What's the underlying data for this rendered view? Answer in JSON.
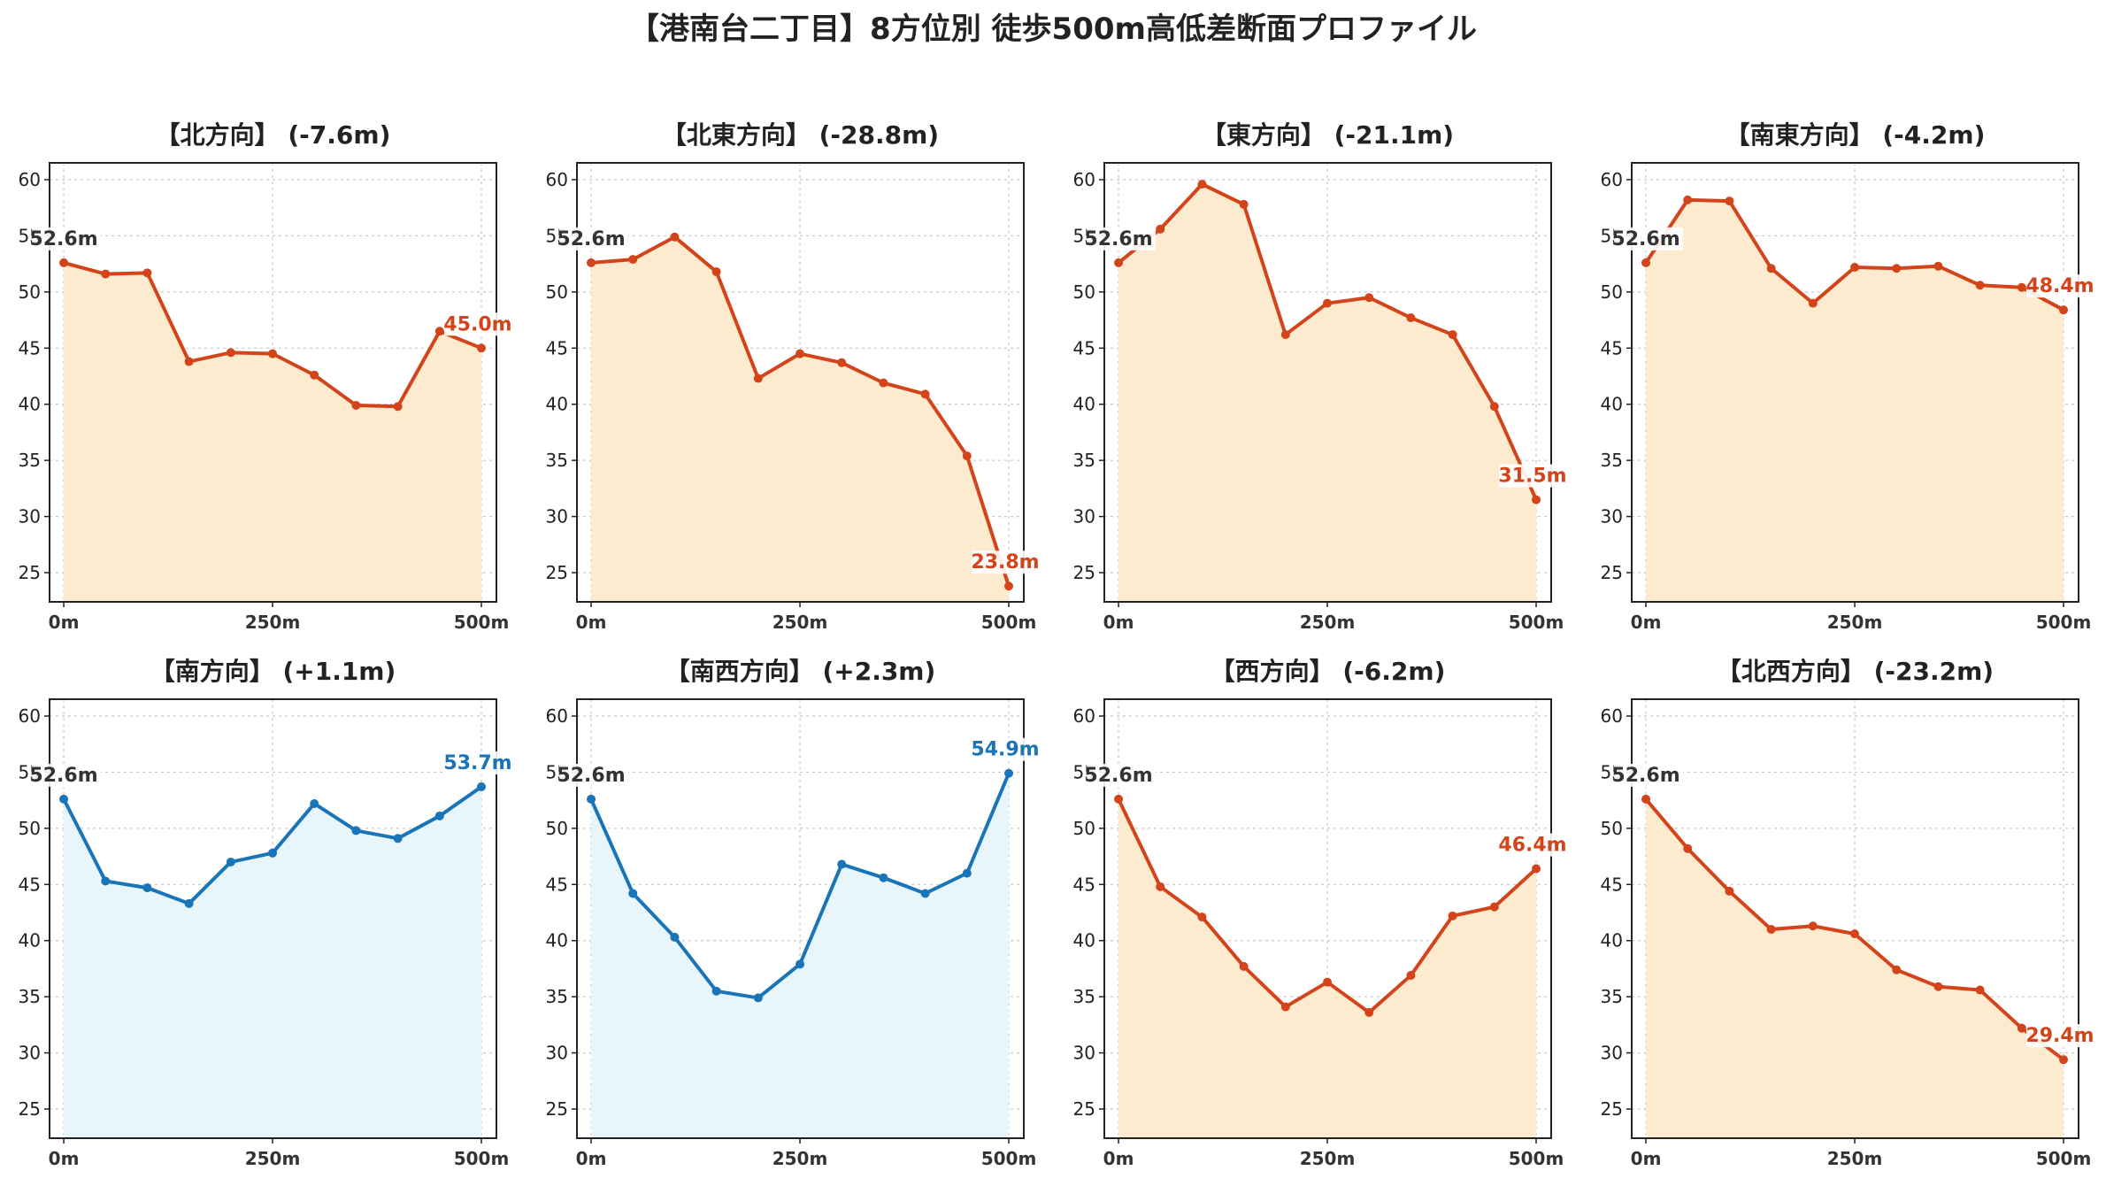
{
  "title": "【港南台二丁目】8方位別 徒歩500m高低差断面プロファイル",
  "colors": {
    "down_line": "#D4441B",
    "down_fill": "#FDEBD0",
    "up_line": "#1A74B8",
    "up_fill": "#E8F6FB",
    "start_label": "#333333"
  },
  "chart_data": [
    {
      "type": "area",
      "title": "【北方向】 (-7.6m)",
      "trend": "down",
      "x": [
        0,
        50,
        100,
        150,
        200,
        250,
        300,
        350,
        400,
        450,
        500
      ],
      "y": [
        52.6,
        51.6,
        51.7,
        43.8,
        44.6,
        44.5,
        42.6,
        39.9,
        39.8,
        46.5,
        45.0
      ],
      "start_label": "52.6m",
      "end_label": "45.0m"
    },
    {
      "type": "area",
      "title": "【北東方向】 (-28.8m)",
      "trend": "down",
      "x": [
        0,
        50,
        100,
        150,
        200,
        250,
        300,
        350,
        400,
        450,
        500
      ],
      "y": [
        52.6,
        52.9,
        54.9,
        51.8,
        42.3,
        44.5,
        43.7,
        41.9,
        40.9,
        35.4,
        23.8
      ],
      "start_label": "52.6m",
      "end_label": "23.8m"
    },
    {
      "type": "area",
      "title": "【東方向】 (-21.1m)",
      "trend": "down",
      "x": [
        0,
        50,
        100,
        150,
        200,
        250,
        300,
        350,
        400,
        450,
        500
      ],
      "y": [
        52.6,
        55.6,
        59.6,
        57.8,
        46.2,
        49.0,
        49.5,
        47.7,
        46.2,
        39.8,
        31.5
      ],
      "start_label": "52.6m",
      "end_label": "31.5m"
    },
    {
      "type": "area",
      "title": "【南東方向】 (-4.2m)",
      "trend": "down",
      "x": [
        0,
        50,
        100,
        150,
        200,
        250,
        300,
        350,
        400,
        450,
        500
      ],
      "y": [
        52.6,
        58.2,
        58.1,
        52.1,
        49.0,
        52.2,
        52.1,
        52.3,
        50.6,
        50.4,
        48.4
      ],
      "start_label": "52.6m",
      "end_label": "48.4m"
    },
    {
      "type": "area",
      "title": "【南方向】 (+1.1m)",
      "trend": "up",
      "x": [
        0,
        50,
        100,
        150,
        200,
        250,
        300,
        350,
        400,
        450,
        500
      ],
      "y": [
        52.6,
        45.3,
        44.7,
        43.3,
        47.0,
        47.8,
        52.2,
        49.8,
        49.1,
        51.1,
        53.7
      ],
      "start_label": "52.6m",
      "end_label": "53.7m"
    },
    {
      "type": "area",
      "title": "【南西方向】 (+2.3m)",
      "trend": "up",
      "x": [
        0,
        50,
        100,
        150,
        200,
        250,
        300,
        350,
        400,
        450,
        500
      ],
      "y": [
        52.6,
        44.2,
        40.3,
        35.5,
        34.9,
        37.9,
        46.8,
        45.6,
        44.2,
        46.0,
        54.9
      ],
      "start_label": "52.6m",
      "end_label": "54.9m"
    },
    {
      "type": "area",
      "title": "【西方向】 (-6.2m)",
      "trend": "down",
      "x": [
        0,
        50,
        100,
        150,
        200,
        250,
        300,
        350,
        400,
        450,
        500
      ],
      "y": [
        52.6,
        44.8,
        42.1,
        37.7,
        34.1,
        36.3,
        33.6,
        36.9,
        42.2,
        43.0,
        46.4
      ],
      "start_label": "52.6m",
      "end_label": "46.4m"
    },
    {
      "type": "area",
      "title": "【北西方向】 (-23.2m)",
      "trend": "down",
      "x": [
        0,
        50,
        100,
        150,
        200,
        250,
        300,
        350,
        400,
        450,
        500
      ],
      "y": [
        52.6,
        48.2,
        44.4,
        41.0,
        41.3,
        40.6,
        37.4,
        35.9,
        35.6,
        32.2,
        29.4
      ],
      "start_label": "52.6m",
      "end_label": "29.4m"
    }
  ],
  "axes": {
    "ylim": [
      22.4,
      61.5
    ],
    "yticks": [
      25,
      30,
      35,
      40,
      45,
      50,
      55,
      60
    ],
    "xlim": [
      -17,
      518
    ],
    "xticks": [
      0,
      250,
      500
    ],
    "xtick_labels": [
      "0m",
      "250m",
      "500m"
    ],
    "grid": true
  }
}
